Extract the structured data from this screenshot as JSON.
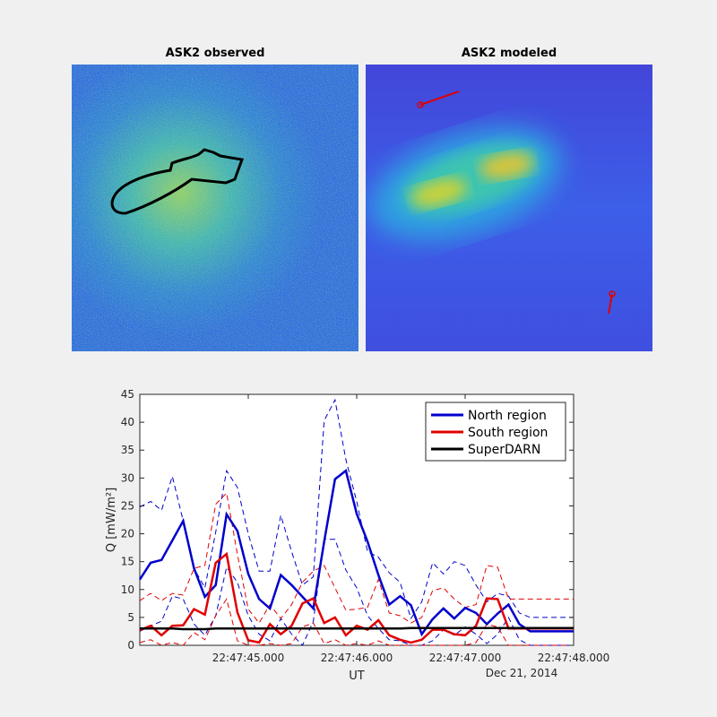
{
  "panels": {
    "observed_title": "ASK2 observed",
    "modeled_title": "ASK2 modeled"
  },
  "chart_data": {
    "type": "line",
    "xlabel": "UT",
    "ylabel": "Q [mW/m²]",
    "date_label": "Dec 21, 2014",
    "x_tick_labels": [
      "22:47:45.000",
      "22:47:46.000",
      "22:47:47.000",
      "22:47:48.000"
    ],
    "x_tick_seconds": [
      45,
      46,
      47,
      48
    ],
    "xlim_seconds": [
      44.0,
      48.0
    ],
    "ylim": [
      0,
      45
    ],
    "y_ticks": [
      0,
      5,
      10,
      15,
      20,
      25,
      30,
      35,
      40,
      45
    ],
    "legend_position": "top-right",
    "x_seconds": [
      44.0,
      44.1,
      44.2,
      44.3,
      44.4,
      44.5,
      44.6,
      44.7,
      44.8,
      44.9,
      45.0,
      45.1,
      45.2,
      45.3,
      45.4,
      45.5,
      45.6,
      45.7,
      45.8,
      45.9,
      46.0,
      46.1,
      46.2,
      46.3,
      46.4,
      46.5,
      46.6,
      46.7,
      46.8,
      46.9,
      47.0,
      47.1,
      47.2,
      47.3,
      47.4,
      47.5,
      47.6,
      47.7,
      47.8,
      47.9,
      48.0
    ],
    "series": [
      {
        "name": "North region",
        "color": "#0000cc",
        "values": [
          11.8,
          14.8,
          15.3,
          18.8,
          22.3,
          13.8,
          8.7,
          10.8,
          23.5,
          20.5,
          12.8,
          8.3,
          6.6,
          12.6,
          10.8,
          8.7,
          6.6,
          18.6,
          29.8,
          31.3,
          23.6,
          18.6,
          12.6,
          7.3,
          8.8,
          7.2,
          2.0,
          4.7,
          6.6,
          4.8,
          6.7,
          5.8,
          3.8,
          5.7,
          7.3,
          3.8,
          2.5,
          2.5,
          2.5,
          2.5,
          2.5
        ],
        "upper": [
          24.8,
          25.8,
          24.2,
          30.3,
          22.3,
          13.8,
          10.3,
          20.3,
          31.3,
          28.3,
          20.0,
          13.3,
          13.3,
          23.3,
          16.8,
          10.8,
          12.3,
          40.3,
          44.0,
          33.3,
          25.8,
          16.8,
          15.8,
          13.0,
          11.3,
          4.8,
          7.8,
          14.8,
          12.8,
          15.0,
          14.3,
          10.8,
          7.8,
          9.3,
          8.8,
          5.8,
          5.0,
          5.0,
          5.0,
          5.0,
          5.0
        ],
        "lower": [
          2.5,
          3.5,
          4.3,
          8.8,
          8.3,
          3.8,
          1.8,
          5.3,
          14.0,
          11.3,
          5.3,
          2.0,
          0.8,
          4.8,
          2.0,
          0.0,
          4.3,
          19.0,
          19.0,
          13.5,
          10.3,
          5.3,
          3.0,
          1.0,
          0.8,
          0.0,
          0.0,
          0.8,
          2.8,
          1.8,
          3.3,
          2.0,
          0.3,
          2.0,
          5.0,
          1.0,
          0.0,
          0.0,
          0.0,
          0.0,
          0.0
        ]
      },
      {
        "name": "South region",
        "color": "#e00000",
        "values": [
          2.7,
          3.5,
          1.8,
          3.5,
          3.6,
          6.5,
          5.5,
          14.8,
          16.4,
          5.9,
          0.9,
          0.5,
          3.8,
          2.0,
          3.5,
          7.5,
          8.4,
          4.0,
          5.0,
          1.8,
          3.5,
          2.8,
          4.5,
          1.8,
          1.0,
          0.5,
          1.0,
          2.8,
          2.8,
          2.0,
          1.8,
          3.5,
          8.4,
          8.3,
          3.0,
          3.0,
          3.0,
          3.0,
          3.0,
          3.0,
          3.0
        ],
        "upper": [
          8.0,
          9.3,
          8.0,
          9.3,
          9.0,
          13.8,
          14.3,
          25.3,
          27.3,
          16.3,
          6.5,
          4.0,
          7.3,
          4.8,
          7.3,
          11.3,
          13.3,
          14.3,
          10.3,
          6.3,
          6.5,
          6.8,
          11.8,
          5.8,
          5.3,
          4.0,
          5.0,
          9.8,
          10.3,
          8.3,
          6.8,
          7.3,
          14.3,
          14.0,
          8.3,
          8.3,
          8.3,
          8.3,
          8.3,
          8.3,
          8.3
        ],
        "lower": [
          0.5,
          1.0,
          0.0,
          0.5,
          0.0,
          2.3,
          1.0,
          5.3,
          8.3,
          0.8,
          0.0,
          0.0,
          0.3,
          0.0,
          0.3,
          3.3,
          4.0,
          0.3,
          1.0,
          0.0,
          0.3,
          0.0,
          0.8,
          0.0,
          0.0,
          0.0,
          0.0,
          0.0,
          0.0,
          0.0,
          0.0,
          0.5,
          3.8,
          3.3,
          0.0,
          0.0,
          0.0,
          0.0,
          0.0,
          0.0,
          0.0
        ]
      },
      {
        "name": "SuperDARN",
        "color": "#000000",
        "values": [
          3.0,
          3.0,
          3.0,
          3.0,
          2.9,
          2.9,
          2.9,
          3.0,
          3.0,
          3.0,
          3.0,
          3.0,
          3.0,
          3.0,
          3.0,
          3.0,
          3.0,
          3.0,
          3.0,
          3.0,
          3.0,
          3.0,
          3.0,
          3.0,
          3.0,
          3.1,
          3.1,
          3.1,
          3.1,
          3.1,
          3.1,
          3.1,
          3.1,
          3.1,
          3.1,
          3.1,
          3.1,
          3.1,
          3.1,
          3.1,
          3.1
        ]
      }
    ]
  }
}
